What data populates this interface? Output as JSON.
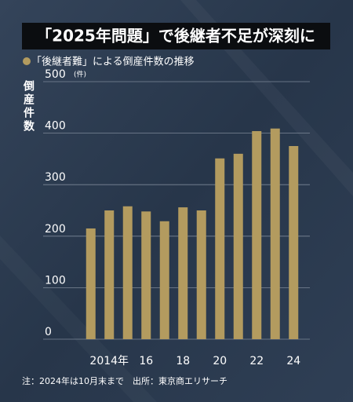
{
  "chart_data": {
    "type": "bar",
    "title": "「2025年問題」で後継者不足が深刻に",
    "legend_label": "「後継者難」による倒産件数の推移",
    "y_axis_label": "倒産件数",
    "y_unit": "(件)",
    "footnote": "注：2024年は10月末まで　出所：東京商エリサーチ",
    "categories": [
      null,
      "2014年",
      null,
      "16",
      null,
      "18",
      null,
      "20",
      null,
      "22",
      null,
      "24"
    ],
    "values": [
      215,
      250,
      258,
      248,
      229,
      256,
      250,
      351,
      360,
      404,
      409,
      375
    ],
    "color": "#b39b5f",
    "ylim": [
      0,
      500
    ],
    "yticks": [
      0,
      100,
      200,
      300,
      400,
      500
    ],
    "grid": true
  }
}
